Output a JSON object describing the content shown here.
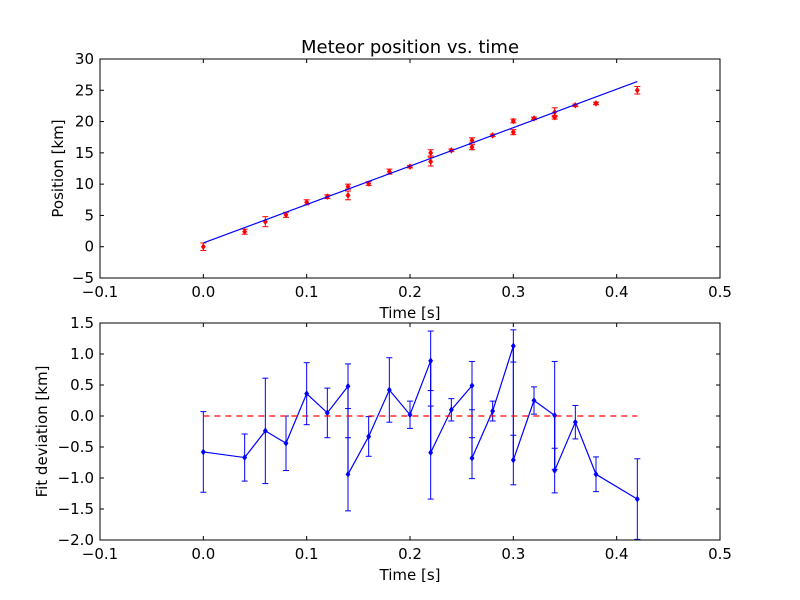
{
  "chart_data": [
    {
      "type": "scatter",
      "title": "Meteor position vs. time",
      "xlabel": "Time [s]",
      "ylabel": "Position [km]",
      "xlim": [
        -0.1,
        0.5
      ],
      "ylim": [
        -5,
        30
      ],
      "xticks": [
        -0.1,
        0.0,
        0.1,
        0.2,
        0.3,
        0.4,
        0.5
      ],
      "yticks": [
        -5,
        0,
        5,
        10,
        15,
        20,
        25,
        30
      ],
      "xtick_labels": [
        "−0.1",
        "0.0",
        "0.1",
        "0.2",
        "0.3",
        "0.4",
        "0.5"
      ],
      "ytick_labels": [
        "−5",
        "0",
        "5",
        "10",
        "15",
        "20",
        "25",
        "30"
      ],
      "grid": false,
      "series": [
        {
          "kind": "points-with-error",
          "color": "#ff0000",
          "x": [
            0.0,
            0.04,
            0.06,
            0.08,
            0.1,
            0.12,
            0.14,
            0.14,
            0.16,
            0.18,
            0.2,
            0.22,
            0.22,
            0.24,
            0.26,
            0.26,
            0.28,
            0.3,
            0.3,
            0.32,
            0.34,
            0.34,
            0.36,
            0.38,
            0.42
          ],
          "y": [
            0.0,
            2.4,
            4.0,
            5.1,
            7.1,
            8.0,
            9.6,
            8.2,
            10.1,
            12.0,
            12.8,
            13.6,
            15.0,
            15.4,
            17.0,
            15.9,
            17.8,
            20.1,
            18.3,
            20.5,
            21.5,
            20.7,
            22.6,
            22.9,
            25.0
          ],
          "err": [
            0.6,
            0.4,
            0.8,
            0.4,
            0.4,
            0.3,
            0.4,
            0.7,
            0.3,
            0.4,
            0.2,
            0.7,
            0.5,
            0.2,
            0.4,
            0.4,
            0.2,
            0.3,
            0.4,
            0.2,
            0.7,
            0.3,
            0.2,
            0.2,
            0.6
          ]
        },
        {
          "kind": "fit-line",
          "color": "#0000ff",
          "x": [
            0.0,
            0.42
          ],
          "y": [
            0.6,
            26.4
          ]
        }
      ]
    },
    {
      "type": "line",
      "xlabel": "Time [s]",
      "ylabel": "Fit deviation [km]",
      "xlim": [
        -0.1,
        0.5
      ],
      "ylim": [
        -2.0,
        1.5
      ],
      "xticks": [
        -0.1,
        0.0,
        0.1,
        0.2,
        0.3,
        0.4,
        0.5
      ],
      "yticks": [
        -2.0,
        -1.5,
        -1.0,
        -0.5,
        0.0,
        0.5,
        1.0,
        1.5
      ],
      "xtick_labels": [
        "−0.1",
        "0.0",
        "0.1",
        "0.2",
        "0.3",
        "0.4",
        "0.5"
      ],
      "ytick_labels": [
        "−2.0",
        "−1.5",
        "−1.0",
        "−0.5",
        "0.0",
        "0.5",
        "1.0",
        "1.5"
      ],
      "grid": false,
      "series": [
        {
          "kind": "line-with-error",
          "color": "#0000ff",
          "x": [
            0.0,
            0.04,
            0.06,
            0.08,
            0.1,
            0.12,
            0.14,
            0.14,
            0.16,
            0.18,
            0.2,
            0.22,
            0.22,
            0.24,
            0.26,
            0.26,
            0.28,
            0.3,
            0.3,
            0.32,
            0.34,
            0.34,
            0.36,
            0.38,
            0.42
          ],
          "y": [
            -0.58,
            -0.67,
            -0.24,
            -0.44,
            0.36,
            0.05,
            0.48,
            -0.94,
            -0.33,
            0.42,
            0.02,
            0.89,
            -0.59,
            0.1,
            0.49,
            -0.68,
            0.08,
            1.13,
            -0.71,
            0.25,
            0.01,
            -0.88,
            -0.1,
            -0.94,
            -1.34
          ],
          "err": [
            0.65,
            0.38,
            0.85,
            0.44,
            0.5,
            0.4,
            0.36,
            0.59,
            0.32,
            0.52,
            0.22,
            0.48,
            0.75,
            0.18,
            0.39,
            0.33,
            0.16,
            0.26,
            0.4,
            0.22,
            0.87,
            0.36,
            0.27,
            0.28,
            0.65
          ]
        },
        {
          "kind": "zero-line",
          "color": "#ff0000",
          "dashed": true,
          "x": [
            0.0,
            0.42
          ],
          "y": [
            0.0,
            0.0
          ]
        }
      ]
    }
  ]
}
